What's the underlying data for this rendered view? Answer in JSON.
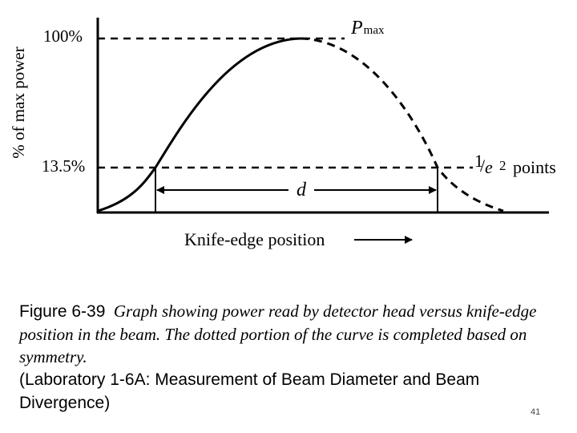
{
  "diagram": {
    "y_axis_label": "% of max power",
    "x_axis_label": "Knife-edge position",
    "tick_100": "100%",
    "tick_13_5": "13.5%",
    "pmax_label": "P",
    "pmax_sub": "max",
    "d_label": "d",
    "e2_num": "1",
    "e2_slash": "/",
    "e2_e": "e",
    "e2_exp": "2",
    "e2_points": "points"
  },
  "caption": {
    "lead": "Figure 6-39",
    "italic": "Graph showing power read by detector head versus knife-edge position in the beam.  The dotted portion of the curve is completed based on symmetry.",
    "lab": "(Laboratory 1-6A:  Measurement of Beam Diameter and Beam Divergence)"
  },
  "page_number": "41"
}
